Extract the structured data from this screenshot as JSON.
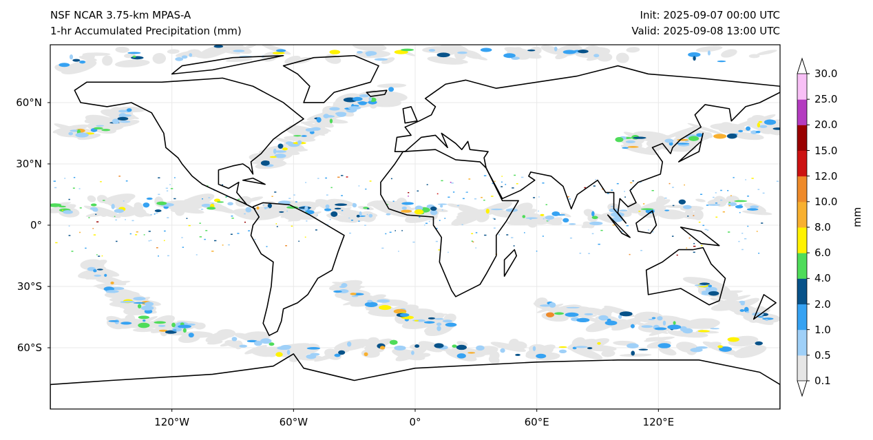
{
  "header": {
    "title_line1": "NSF NCAR 3.75-km MPAS-A",
    "title_line2": "1-hr Accumulated Precipitation (mm)",
    "init": "Init: 2025-09-07 00:00 UTC",
    "valid": "Valid: 2025-09-08 13:00 UTC"
  },
  "axes": {
    "lat_labels": [
      "60°N",
      "30°N",
      "0°",
      "30°S",
      "60°S"
    ],
    "lat_values": [
      60,
      30,
      0,
      -30,
      -60
    ],
    "lon_labels": [
      "120°W",
      "60°W",
      "0°",
      "60°E",
      "120°E"
    ],
    "lon_values": [
      -120,
      -60,
      0,
      60,
      120
    ]
  },
  "colorbar": {
    "unit": "mm",
    "levels": [
      "0.1",
      "0.5",
      "1.0",
      "2.0",
      "4.0",
      "6.0",
      "8.0",
      "10.0",
      "12.0",
      "15.0",
      "20.0",
      "25.0",
      "30.0"
    ],
    "colors": [
      "#e6e6e6",
      "#9fd0f8",
      "#36a2f2",
      "#075289",
      "#4fdc5a",
      "#fff200",
      "#f8b030",
      "#ee8a2a",
      "#cc1212",
      "#990000",
      "#b43cc0",
      "#f8c0f6"
    ]
  }
}
